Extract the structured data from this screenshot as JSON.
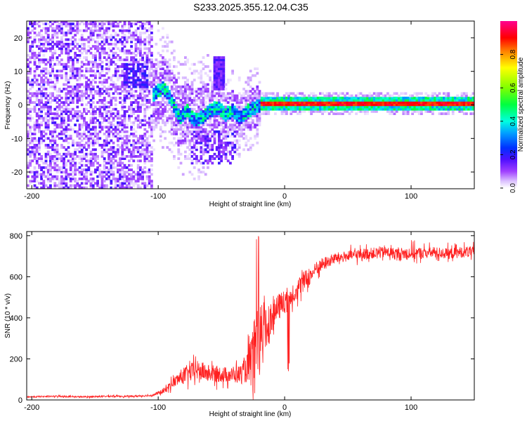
{
  "title": "S233.2025.355.12.04.C35",
  "colors": {
    "signal_line": "#ff2020",
    "axis": "#000000",
    "colormap": [
      "#ffffff",
      "#d8b8ff",
      "#a040ff",
      "#4000ff",
      "#0040ff",
      "#00ffff",
      "#00ff40",
      "#80ff00",
      "#ffff00",
      "#ff8000",
      "#ff0000",
      "#ff00a0"
    ]
  },
  "chart_data": [
    {
      "type": "heatmap",
      "title": "S233.2025.355.12.04.C35",
      "xlabel": "Height of straight line (km)",
      "ylabel": "Frequency (Hz)",
      "xlim": [
        -204,
        150
      ],
      "ylim": [
        -25,
        25
      ],
      "xticks": [
        -200,
        -100,
        0,
        100
      ],
      "xtick_labels": [
        "-200",
        "-100",
        "0",
        "100"
      ],
      "yticks": [
        -20,
        -10,
        0,
        10,
        20
      ],
      "ytick_labels": [
        "-20",
        "-10",
        "0",
        "10",
        "20"
      ],
      "colorbar": {
        "label": "Normalized spectral amplitude",
        "range": [
          0,
          1
        ],
        "ticks": [
          0.0,
          0.2,
          0.4,
          0.6,
          0.8
        ],
        "tick_labels": [
          "0.0",
          "0.2",
          "0.4",
          "0.6",
          "0.8"
        ]
      },
      "regions": [
        {
          "name": "noise",
          "x_range": [
            -204,
            -105
          ],
          "freq_range": [
            -25,
            25
          ],
          "amplitude": 0.12
        },
        {
          "name": "onset-burst",
          "x_range": [
            -128,
            -108
          ],
          "freq_range": [
            5,
            12
          ],
          "amplitude": 0.18
        },
        {
          "name": "onset",
          "x_range": [
            -105,
            -20
          ],
          "freq_range": [
            -17,
            12
          ],
          "amplitude": 0.2
        },
        {
          "name": "spike",
          "x_range": [
            -57,
            -48
          ],
          "freq_range": [
            4,
            14
          ],
          "amplitude": 0.16
        },
        {
          "name": "steady-tone",
          "x_range": [
            -20,
            150
          ],
          "freq_range": [
            -1,
            1
          ],
          "amplitude": 0.92
        }
      ],
      "ridge": [
        {
          "x": -104,
          "f": 3
        },
        {
          "x": -97,
          "f": 5
        },
        {
          "x": -90,
          "f": 1
        },
        {
          "x": -84,
          "f": -4
        },
        {
          "x": -78,
          "f": -2
        },
        {
          "x": -72,
          "f": -5
        },
        {
          "x": -66,
          "f": -4
        },
        {
          "x": -60,
          "f": -2
        },
        {
          "x": -54,
          "f": -1
        },
        {
          "x": -48,
          "f": -3
        },
        {
          "x": -42,
          "f": -2
        },
        {
          "x": -36,
          "f": -4
        },
        {
          "x": -30,
          "f": -2
        },
        {
          "x": -24,
          "f": -1
        },
        {
          "x": -16,
          "f": 0
        },
        {
          "x": -8,
          "f": 2
        },
        {
          "x": -4,
          "f": 1
        },
        {
          "x": 0,
          "f": 0.5
        },
        {
          "x": 20,
          "f": 0
        },
        {
          "x": 150,
          "f": 0
        }
      ]
    },
    {
      "type": "line",
      "xlabel": "Height of straight line (km)",
      "ylabel": "SNR (10 * v/v)",
      "xlim": [
        -204,
        150
      ],
      "ylim": [
        0,
        820
      ],
      "xticks": [
        -200,
        -100,
        0,
        100
      ],
      "xtick_labels": [
        "-200",
        "-100",
        "0",
        "100"
      ],
      "yticks": [
        0,
        200,
        400,
        600,
        800
      ],
      "ytick_labels": [
        "0",
        "200",
        "400",
        "600",
        "800"
      ],
      "series": [
        {
          "name": "SNR",
          "x": [
            -204,
            -180,
            -160,
            -140,
            -120,
            -105,
            -95,
            -90,
            -80,
            -70,
            -60,
            -50,
            -40,
            -35,
            -30,
            -25,
            -22,
            -18,
            -15,
            -10,
            -5,
            0,
            5,
            10,
            15,
            20,
            25,
            30,
            40,
            50,
            60,
            70,
            80,
            90,
            100,
            110,
            120,
            130,
            140,
            150
          ],
          "y": [
            15,
            18,
            15,
            18,
            18,
            22,
            45,
            75,
            120,
            145,
            130,
            125,
            120,
            125,
            150,
            200,
            290,
            310,
            360,
            400,
            450,
            480,
            510,
            540,
            580,
            600,
            640,
            660,
            690,
            700,
            710,
            715,
            720,
            710,
            715,
            715,
            718,
            712,
            720,
            720
          ],
          "noise": [
            6,
            6,
            6,
            7,
            6,
            8,
            22,
            35,
            70,
            80,
            70,
            65,
            60,
            80,
            110,
            260,
            300,
            330,
            260,
            120,
            110,
            100,
            90,
            85,
            80,
            65,
            55,
            55,
            45,
            45,
            45,
            45,
            45,
            50,
            55,
            45,
            45,
            45,
            45,
            45
          ]
        }
      ]
    }
  ]
}
